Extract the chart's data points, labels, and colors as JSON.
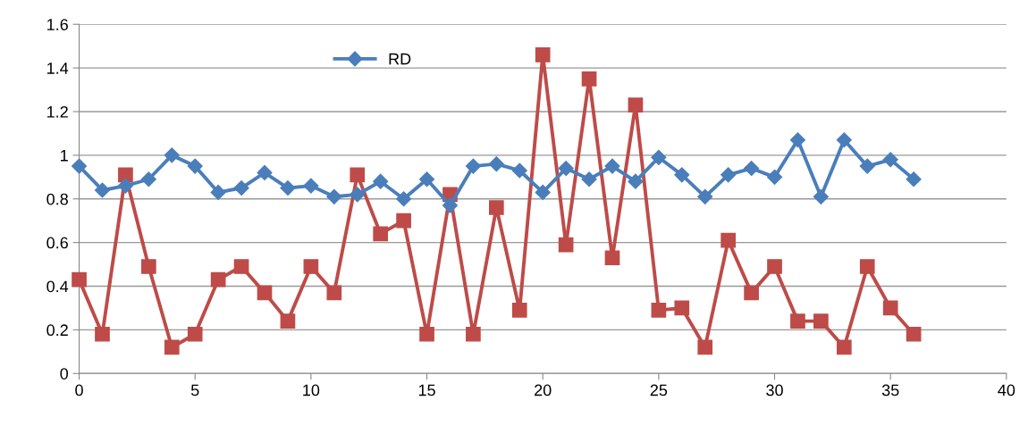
{
  "chart_data": {
    "type": "line",
    "x": [
      0,
      1,
      2,
      3,
      4,
      5,
      6,
      7,
      8,
      9,
      10,
      11,
      12,
      13,
      14,
      15,
      16,
      17,
      18,
      19,
      20,
      21,
      22,
      23,
      24,
      25,
      26,
      27,
      28,
      29,
      30,
      31,
      32,
      33,
      34,
      35,
      36
    ],
    "series": [
      {
        "name": "RD",
        "color": "#4a7ebb",
        "marker": "diamond",
        "values": [
          0.95,
          0.84,
          0.86,
          0.89,
          1.0,
          0.95,
          0.83,
          0.85,
          0.92,
          0.85,
          0.86,
          0.81,
          0.82,
          0.88,
          0.8,
          0.89,
          0.77,
          0.95,
          0.96,
          0.93,
          0.83,
          0.94,
          0.89,
          0.95,
          0.88,
          0.99,
          0.91,
          0.81,
          0.91,
          0.94,
          0.9,
          1.07,
          0.81,
          1.07,
          0.95,
          0.98,
          0.89
        ]
      },
      {
        "color": "#be4b48",
        "marker": "square",
        "values": [
          0.43,
          0.18,
          0.91,
          0.49,
          0.12,
          0.18,
          0.43,
          0.49,
          0.37,
          0.24,
          0.49,
          0.37,
          0.91,
          0.64,
          0.7,
          0.18,
          0.82,
          0.18,
          0.76,
          0.29,
          1.46,
          0.59,
          1.35,
          0.53,
          1.23,
          0.29,
          0.3,
          0.12,
          0.61,
          0.37,
          0.49,
          0.24,
          0.24,
          0.12,
          0.49,
          0.3,
          0.18
        ]
      }
    ],
    "xlim": [
      0,
      40
    ],
    "xticks": [
      0,
      5,
      10,
      15,
      20,
      25,
      30,
      35,
      40
    ],
    "ylim": [
      0,
      1.6
    ],
    "yticks": [
      0,
      0.2,
      0.4,
      0.6,
      0.8,
      1,
      1.2,
      1.4,
      1.6
    ],
    "grid": "y",
    "legend": "top left",
    "line_style": "solid"
  }
}
